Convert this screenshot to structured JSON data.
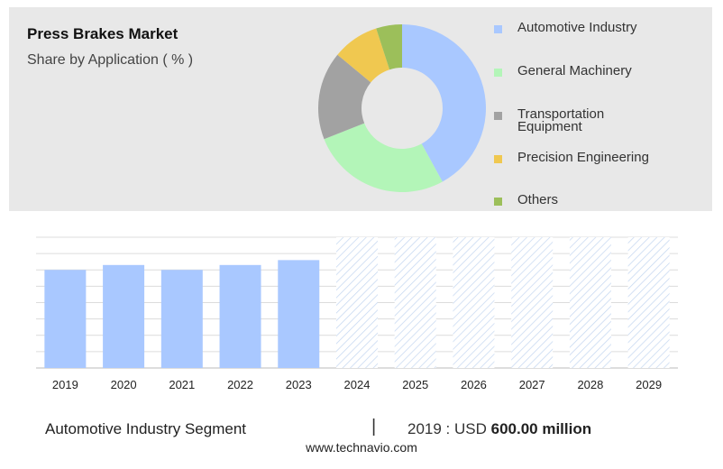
{
  "header": {
    "title": "Press Brakes Market",
    "subtitle": "Share by Application ( % )"
  },
  "colors": {
    "automotive": "#a9c8ff",
    "general_machinery": "#b3f5b8",
    "transportation": "#a2a2a2",
    "precision": "#f0c850",
    "others": "#9cbf5a",
    "bar": "#a9c8ff",
    "hatch": "#c3d6f0"
  },
  "chart_data": [
    {
      "type": "pie",
      "donut": true,
      "title": "Share by Application ( % )",
      "labels": [
        "Automotive Industry",
        "General Machinery",
        "Transportation Equipment",
        "Precision Engineering",
        "Others"
      ],
      "values": [
        42,
        27,
        17,
        9,
        5
      ],
      "legend_position": "right"
    },
    {
      "type": "bar",
      "categories": [
        "2019",
        "2020",
        "2021",
        "2022",
        "2023",
        "2024",
        "2025",
        "2026",
        "2027",
        "2028",
        "2029"
      ],
      "values": [
        600,
        630,
        600,
        630,
        660,
        null,
        null,
        null,
        null,
        null,
        null
      ],
      "forecast_categories": [
        "2024",
        "2025",
        "2026",
        "2027",
        "2028",
        "2029"
      ],
      "ylim": [
        0,
        800
      ],
      "grid": true
    }
  ],
  "legend": {
    "items": [
      {
        "key": "automotive",
        "label_lines": [
          "Automotive Industry"
        ]
      },
      {
        "key": "general_machinery",
        "label_lines": [
          "General Machinery"
        ]
      },
      {
        "key": "transportation",
        "label_lines": [
          "Transportation",
          "Equipment"
        ]
      },
      {
        "key": "precision",
        "label_lines": [
          "Precision Engineering"
        ]
      },
      {
        "key": "others",
        "label_lines": [
          "Others"
        ]
      }
    ]
  },
  "footer": {
    "segment": "Automotive Industry Segment",
    "separator": "|",
    "year_prefix": "2019 : USD",
    "value": "600.00 million",
    "source": "www.technavio.com"
  }
}
